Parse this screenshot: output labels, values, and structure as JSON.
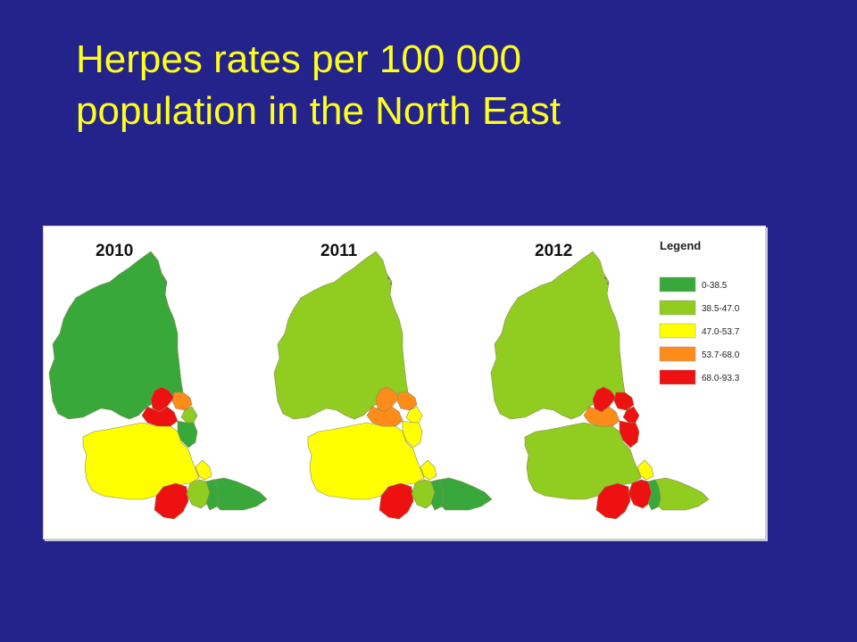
{
  "title": {
    "line1": "Herpes rates per 100 000",
    "line2": "population in the North East"
  },
  "colors": {
    "background": "#23238b",
    "title": "#ffff1e"
  },
  "legend": {
    "title": "Legend",
    "classes": [
      {
        "label": "0-38.5",
        "color": "#39a83a"
      },
      {
        "label": "38.5-47.0",
        "color": "#91cc20"
      },
      {
        "label": "47.0-53.7",
        "color": "#ffff00"
      },
      {
        "label": "53.7-68.0",
        "color": "#ff8c1a"
      },
      {
        "label": "68.0-93.3",
        "color": "#ee1111"
      }
    ]
  },
  "maps": [
    {
      "year": "2010",
      "classes": {
        "northumberland": 0,
        "newcastle": 4,
        "north_tyneside": 3,
        "south_tyneside": 1,
        "gateshead": 4,
        "sunderland": 0,
        "durham": 2,
        "hartlepool": 2,
        "darlington": 4,
        "stockton": 1,
        "middlesbrough": 0,
        "redcar": 0
      }
    },
    {
      "year": "2011",
      "classes": {
        "northumberland": 1,
        "newcastle": 3,
        "north_tyneside": 3,
        "south_tyneside": 2,
        "gateshead": 3,
        "sunderland": 2,
        "durham": 2,
        "hartlepool": 2,
        "darlington": 4,
        "stockton": 1,
        "middlesbrough": 0,
        "redcar": 0
      }
    },
    {
      "year": "2012",
      "classes": {
        "northumberland": 1,
        "newcastle": 4,
        "north_tyneside": 4,
        "south_tyneside": 4,
        "gateshead": 3,
        "sunderland": 4,
        "durham": 1,
        "hartlepool": 2,
        "darlington": 4,
        "stockton": 4,
        "middlesbrough": 0,
        "redcar": 1
      }
    }
  ]
}
